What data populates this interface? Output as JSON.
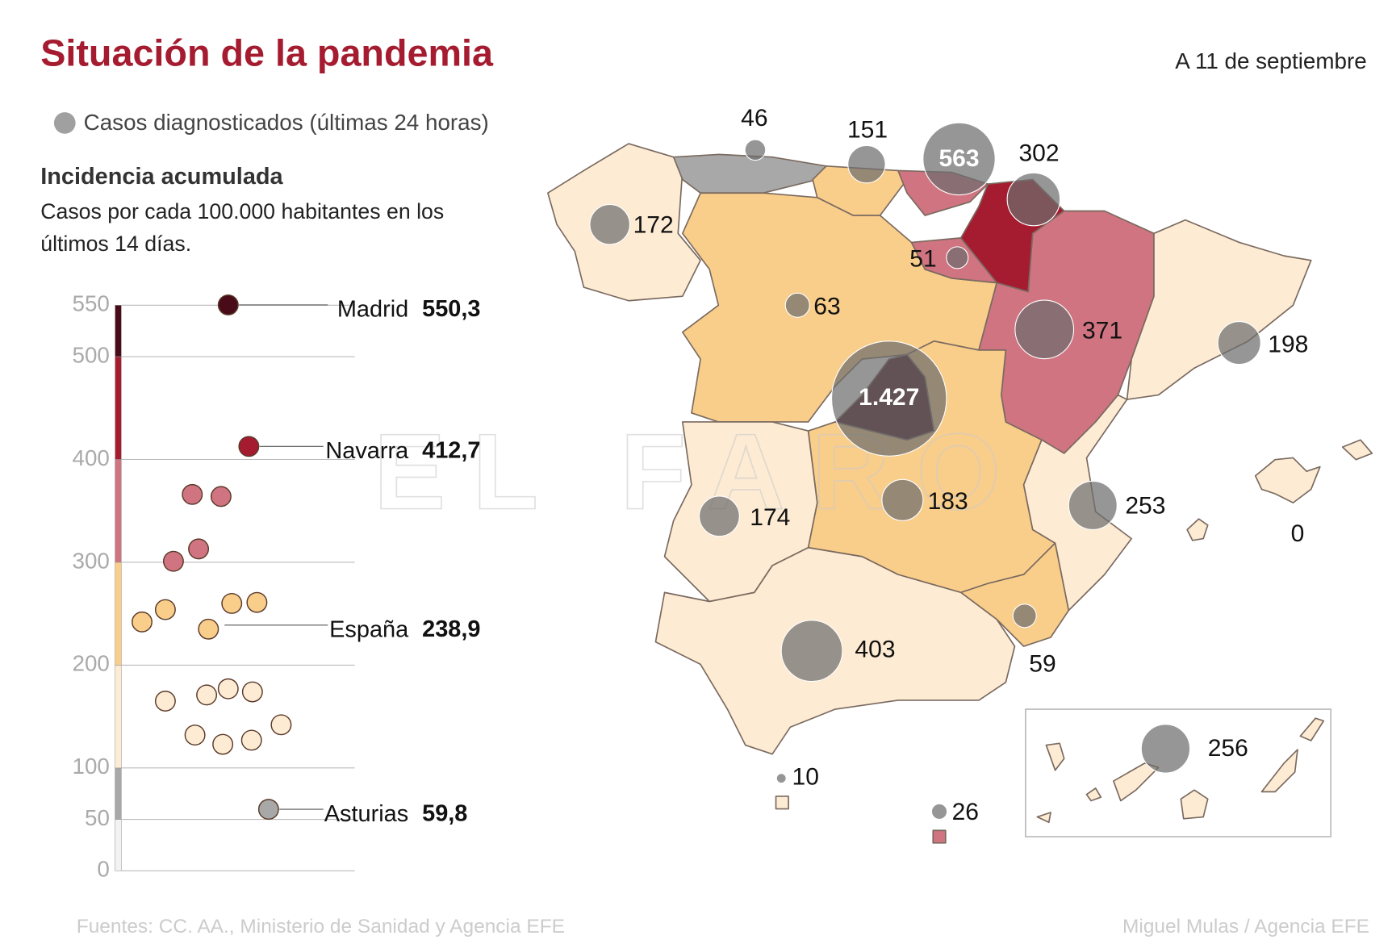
{
  "title": "Situación de la pandemia",
  "date": "A 11 de septiembre",
  "watermark": "EL FARO",
  "chart_data": {
    "type": "scatter",
    "title": "Incidencia acumulada",
    "subtitle": [
      "Casos por cada 100.000 habitantes en los",
      "últimos 14 días."
    ],
    "ylim": [
      0,
      550
    ],
    "yticks": [
      0,
      50,
      100,
      200,
      300,
      400,
      500,
      550
    ],
    "values": [
      550.3,
      412.7,
      366,
      364,
      313,
      301,
      242,
      254,
      235,
      260,
      261,
      165,
      171,
      177,
      174,
      142,
      132,
      123,
      127,
      59.8
    ],
    "bands": [
      {
        "from": 0,
        "to": 50,
        "color": "#f2f2f2"
      },
      {
        "from": 50,
        "to": 100,
        "color": "#a8a8a8"
      },
      {
        "from": 100,
        "to": 200,
        "color": "#fdebd3"
      },
      {
        "from": 200,
        "to": 300,
        "color": "#f9cd8a"
      },
      {
        "from": 300,
        "to": 400,
        "color": "#cf7480"
      },
      {
        "from": 400,
        "to": 500,
        "color": "#a51c30"
      },
      {
        "from": 500,
        "to": 550,
        "color": "#4a0b18"
      }
    ],
    "highlights": {
      "names": [
        "Madrid",
        "Navarra",
        "España",
        "Asturias"
      ],
      "values": [
        550.3,
        412.7,
        238.9,
        59.8
      ],
      "value_labels": [
        "550,3",
        "412,7",
        "238,9",
        "59,8"
      ]
    }
  },
  "map": {
    "legend": "Casos diagnosticados (últimas 24 horas)",
    "color": "#6e6e6e",
    "values": [
      46,
      151,
      563,
      302,
      172,
      51,
      63,
      371,
      198,
      1427,
      174,
      183,
      253,
      0,
      403,
      59,
      10,
      26,
      256
    ],
    "value_labels": [
      "46",
      "151",
      "563",
      "302",
      "172",
      "51",
      "63",
      "371",
      "198",
      "1.427",
      "174",
      "183",
      "253",
      "0",
      "403",
      "59",
      "10",
      "26",
      "256"
    ]
  },
  "sources": "Fuentes: CC. AA., Ministerio de Sanidad y Agencia EFE",
  "credit": "Miguel Mulas / Agencia EFE"
}
